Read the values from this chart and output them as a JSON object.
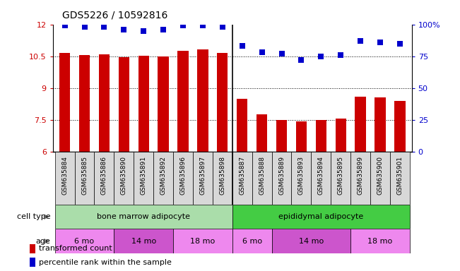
{
  "title": "GDS5226 / 10592816",
  "samples": [
    "GSM635884",
    "GSM635885",
    "GSM635886",
    "GSM635890",
    "GSM635891",
    "GSM635892",
    "GSM635896",
    "GSM635897",
    "GSM635898",
    "GSM635887",
    "GSM635888",
    "GSM635889",
    "GSM635893",
    "GSM635894",
    "GSM635895",
    "GSM635899",
    "GSM635900",
    "GSM635901"
  ],
  "transformed_counts": [
    10.65,
    10.57,
    10.6,
    10.45,
    10.52,
    10.5,
    10.75,
    10.82,
    10.65,
    8.5,
    7.75,
    7.5,
    7.42,
    7.5,
    7.55,
    8.6,
    8.55,
    8.4
  ],
  "percentile_ranks": [
    99,
    98,
    98,
    96,
    95,
    96,
    99,
    99,
    98,
    83,
    78,
    77,
    72,
    75,
    76,
    87,
    86,
    85
  ],
  "ylim_left": [
    6,
    12
  ],
  "ylim_right": [
    0,
    100
  ],
  "yticks_left": [
    6,
    7.5,
    9,
    10.5,
    12
  ],
  "yticks_right": [
    0,
    25,
    50,
    75,
    100
  ],
  "ytick_labels_right": [
    "0",
    "25",
    "50",
    "75",
    "100%"
  ],
  "bar_color": "#cc0000",
  "dot_color": "#0000cc",
  "grid_levels": [
    7.5,
    9.0,
    10.5
  ],
  "cell_type_groups": [
    {
      "label": "bone marrow adipocyte",
      "start": 0,
      "end": 8,
      "color": "#aaddaa"
    },
    {
      "label": "epididymal adipocyte",
      "start": 9,
      "end": 17,
      "color": "#44cc44"
    }
  ],
  "age_groups": [
    {
      "label": "6 mo",
      "start": 0,
      "end": 2,
      "color": "#ee88ee"
    },
    {
      "label": "14 mo",
      "start": 3,
      "end": 5,
      "color": "#cc55cc"
    },
    {
      "label": "18 mo",
      "start": 6,
      "end": 8,
      "color": "#ee88ee"
    },
    {
      "label": "6 mo",
      "start": 9,
      "end": 10,
      "color": "#ee88ee"
    },
    {
      "label": "14 mo",
      "start": 11,
      "end": 14,
      "color": "#cc55cc"
    },
    {
      "label": "18 mo",
      "start": 15,
      "end": 17,
      "color": "#ee88ee"
    }
  ],
  "legend_transformed": "transformed count",
  "legend_percentile": "percentile rank within the sample",
  "row_label_cell_type": "cell type",
  "row_label_age": "age",
  "divider_after": 8,
  "bar_width": 0.55,
  "dot_size": 28,
  "xticklabel_fontsize": 6.5,
  "yticklabel_fontsize": 8,
  "title_fontsize": 10,
  "annotation_fontsize": 8,
  "legend_fontsize": 8
}
